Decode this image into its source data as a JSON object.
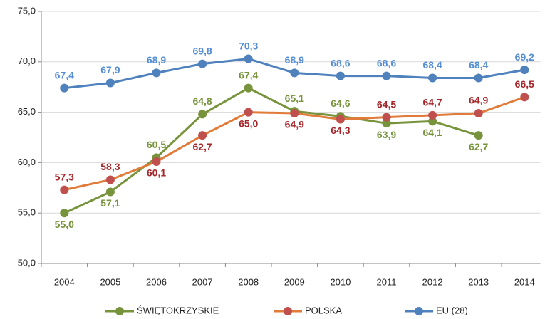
{
  "chart_data": {
    "type": "line",
    "categories": [
      "2004",
      "2005",
      "2006",
      "2007",
      "2008",
      "2009",
      "2010",
      "2011",
      "2012",
      "2013",
      "2014"
    ],
    "series": [
      {
        "name": "ŚWIĘTOKRZYSKIE",
        "color": "#77933c",
        "marker_color": "#77933c",
        "label_color": "#77933c",
        "values": [
          55.0,
          57.1,
          60.5,
          64.8,
          67.4,
          65.1,
          64.6,
          63.9,
          64.1,
          62.7,
          null
        ],
        "value_labels": [
          "55,0",
          "57,1",
          "60,5",
          "64,8",
          "67,4",
          "65,1",
          "64,6",
          "63,9",
          "64,1",
          "62,7",
          null
        ]
      },
      {
        "name": "POLSKA",
        "color": "#e07b39",
        "marker_color": "#c0504d",
        "label_color": "#a5272b",
        "values": [
          57.3,
          58.3,
          60.1,
          62.7,
          65.0,
          64.9,
          64.3,
          64.5,
          64.7,
          64.9,
          66.5
        ],
        "value_labels": [
          "57,3",
          "58,3",
          "60,1",
          "62,7",
          "65,0",
          "64,9",
          "64,3",
          "64,5",
          "64,7",
          "64,9",
          "66,5"
        ]
      },
      {
        "name": "EU (28)",
        "color": "#4f81bd",
        "marker_color": "#4f81bd",
        "label_color": "#558ed5",
        "values": [
          67.4,
          67.9,
          68.9,
          69.8,
          70.3,
          68.9,
          68.6,
          68.6,
          68.4,
          68.4,
          69.2
        ],
        "value_labels": [
          "67,4",
          "67,9",
          "68,9",
          "69,8",
          "70,3",
          "68,9",
          "68,6",
          "68,6",
          "68,4",
          "68,4",
          "69,2"
        ]
      }
    ],
    "ylim": [
      50,
      75
    ],
    "yticks": [
      {
        "value": 50,
        "label": "50,0"
      },
      {
        "value": 55,
        "label": "55,0"
      },
      {
        "value": 60,
        "label": "60,0"
      },
      {
        "value": 65,
        "label": "65,0"
      },
      {
        "value": 70,
        "label": "70,0"
      },
      {
        "value": 75,
        "label": "75,0"
      }
    ],
    "grid": true,
    "legend": "bottom"
  }
}
